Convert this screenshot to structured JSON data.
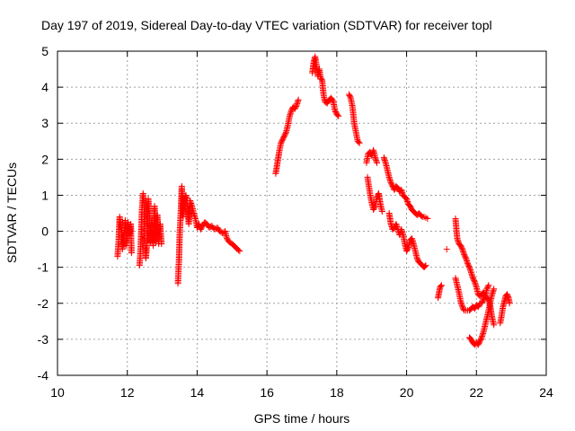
{
  "chart_data": {
    "type": "scatter",
    "title": "Day 197 of 2019, Sidereal Day-to-day VTEC variation (SDTVAR) for receiver topl",
    "xlabel": "GPS time / hours",
    "ylabel": "SDTVAR / TECUs",
    "xlim": [
      10,
      24
    ],
    "ylim": [
      -4,
      5
    ],
    "xticks": [
      10,
      12,
      14,
      16,
      18,
      20,
      22,
      24
    ],
    "yticks": [
      -4,
      -3,
      -2,
      -1,
      0,
      1,
      2,
      3,
      4,
      5
    ],
    "grid": true,
    "marker": "+",
    "color": "#ff0000",
    "segments": [
      [
        [
          11.72,
          -0.7
        ],
        [
          11.75,
          -0.3
        ],
        [
          11.78,
          0.4
        ],
        [
          11.82,
          0.1
        ],
        [
          11.86,
          -0.5
        ],
        [
          11.9,
          -0.2
        ],
        [
          11.94,
          0.3
        ],
        [
          11.98,
          -0.4
        ],
        [
          12.02,
          0.25
        ],
        [
          12.06,
          -0.1
        ],
        [
          12.1,
          0.2
        ],
        [
          12.12,
          -0.6
        ]
      ],
      [
        [
          12.35,
          -0.95
        ],
        [
          12.38,
          -0.5
        ],
        [
          12.42,
          0.6
        ],
        [
          12.45,
          1.05
        ],
        [
          12.48,
          0.8
        ],
        [
          12.5,
          -0.2
        ],
        [
          12.53,
          -0.75
        ],
        [
          12.56,
          -0.4
        ],
        [
          12.6,
          0.9
        ],
        [
          12.63,
          0.5
        ],
        [
          12.66,
          -0.3
        ],
        [
          12.7,
          0.3
        ],
        [
          12.74,
          -0.4
        ],
        [
          12.78,
          0.7
        ],
        [
          12.82,
          -0.3
        ],
        [
          12.86,
          0.45
        ],
        [
          12.9,
          -0.35
        ],
        [
          12.94,
          0.2
        ],
        [
          12.98,
          -0.35
        ]
      ],
      [
        [
          13.45,
          -1.45
        ],
        [
          13.48,
          -0.8
        ],
        [
          13.5,
          -0.1
        ],
        [
          13.53,
          0.5
        ],
        [
          13.56,
          1.25
        ],
        [
          13.6,
          0.4
        ],
        [
          13.64,
          0.9
        ],
        [
          13.68,
          1.0
        ],
        [
          13.72,
          0.7
        ],
        [
          13.76,
          0.2
        ],
        [
          13.8,
          0.85
        ],
        [
          13.85,
          0.7
        ],
        [
          13.9,
          0.5
        ],
        [
          13.95,
          0.35
        ],
        [
          14.0,
          0.1
        ],
        [
          14.05,
          0.2
        ],
        [
          14.1,
          0.05
        ],
        [
          14.15,
          0.15
        ],
        [
          14.22,
          0.25
        ],
        [
          14.28,
          0.2
        ],
        [
          14.35,
          0.1
        ],
        [
          14.42,
          0.15
        ],
        [
          14.5,
          0.05
        ],
        [
          14.58,
          0.1
        ],
        [
          14.65,
          0.0
        ],
        [
          14.72,
          -0.05
        ],
        [
          14.8,
          0.0
        ],
        [
          14.85,
          -0.2
        ],
        [
          14.92,
          -0.3
        ],
        [
          15.0,
          -0.35
        ],
        [
          15.08,
          -0.42
        ],
        [
          15.15,
          -0.5
        ],
        [
          15.22,
          -0.55
        ]
      ],
      [
        [
          16.25,
          1.6
        ],
        [
          16.3,
          1.9
        ],
        [
          16.35,
          2.2
        ],
        [
          16.4,
          2.45
        ],
        [
          16.45,
          2.55
        ],
        [
          16.5,
          2.65
        ],
        [
          16.55,
          2.75
        ],
        [
          16.6,
          2.95
        ],
        [
          16.65,
          3.2
        ],
        [
          16.7,
          3.35
        ],
        [
          16.75,
          3.45
        ],
        [
          16.8,
          3.4
        ],
        [
          16.85,
          3.5
        ],
        [
          16.9,
          3.65
        ]
      ],
      [
        [
          17.3,
          4.4
        ],
        [
          17.34,
          4.7
        ],
        [
          17.38,
          4.85
        ],
        [
          17.42,
          4.6
        ],
        [
          17.46,
          4.3
        ],
        [
          17.5,
          4.5
        ],
        [
          17.54,
          4.25
        ],
        [
          17.58,
          4.2
        ],
        [
          17.62,
          3.8
        ],
        [
          17.66,
          3.6
        ],
        [
          17.72,
          3.55
        ],
        [
          17.78,
          3.65
        ],
        [
          17.84,
          3.7
        ],
        [
          17.9,
          3.6
        ],
        [
          17.95,
          3.35
        ],
        [
          18.0,
          3.25
        ],
        [
          18.05,
          3.2
        ]
      ],
      [
        [
          18.35,
          3.8
        ],
        [
          18.4,
          3.7
        ],
        [
          18.45,
          3.45
        ],
        [
          18.5,
          3.0
        ],
        [
          18.55,
          2.75
        ],
        [
          18.6,
          2.5
        ],
        [
          18.65,
          2.45
        ]
      ],
      [
        [
          18.85,
          1.9
        ],
        [
          18.9,
          2.15
        ],
        [
          18.95,
          2.2
        ],
        [
          19.0,
          2.1
        ],
        [
          19.05,
          2.25
        ],
        [
          19.1,
          2.05
        ],
        [
          19.15,
          1.9
        ]
      ],
      [
        [
          18.88,
          1.5
        ],
        [
          18.92,
          1.25
        ],
        [
          18.96,
          1.0
        ],
        [
          19.0,
          0.8
        ],
        [
          19.05,
          0.6
        ],
        [
          19.1,
          0.7
        ],
        [
          19.15,
          0.95
        ],
        [
          19.2,
          1.05
        ],
        [
          19.25,
          0.75
        ],
        [
          19.3,
          0.55
        ]
      ],
      [
        [
          19.35,
          2.05
        ],
        [
          19.4,
          1.9
        ],
        [
          19.45,
          1.7
        ],
        [
          19.5,
          1.5
        ],
        [
          19.55,
          1.35
        ],
        [
          19.6,
          1.25
        ],
        [
          19.65,
          1.15
        ],
        [
          19.7,
          1.25
        ],
        [
          19.75,
          1.2
        ],
        [
          19.8,
          1.1
        ],
        [
          19.85,
          1.15
        ],
        [
          19.9,
          1.0
        ],
        [
          19.95,
          0.95
        ],
        [
          20.0,
          0.9
        ],
        [
          20.05,
          0.75
        ],
        [
          20.1,
          0.7
        ],
        [
          20.15,
          0.6
        ],
        [
          20.2,
          0.55
        ],
        [
          20.25,
          0.5
        ],
        [
          20.3,
          0.45
        ],
        [
          20.35,
          0.5
        ],
        [
          20.4,
          0.45
        ],
        [
          20.45,
          0.4
        ],
        [
          20.5,
          0.4
        ],
        [
          20.55,
          0.38
        ],
        [
          20.6,
          0.35
        ]
      ],
      [
        [
          19.5,
          0.5
        ],
        [
          19.55,
          0.2
        ],
        [
          19.6,
          0.05
        ],
        [
          19.65,
          0.1
        ],
        [
          19.7,
          0.2
        ],
        [
          19.75,
          0.05
        ],
        [
          19.8,
          -0.1
        ],
        [
          19.85,
          0.05
        ],
        [
          19.9,
          -0.1
        ],
        [
          19.95,
          -0.35
        ],
        [
          20.0,
          -0.55
        ],
        [
          20.05,
          -0.45
        ],
        [
          20.1,
          -0.25
        ],
        [
          20.15,
          -0.2
        ],
        [
          20.2,
          -0.35
        ],
        [
          20.25,
          -0.55
        ],
        [
          20.3,
          -0.75
        ],
        [
          20.35,
          -0.85
        ],
        [
          20.4,
          -0.9
        ],
        [
          20.45,
          -0.95
        ],
        [
          20.5,
          -1.0
        ],
        [
          20.55,
          -0.95
        ]
      ],
      [
        [
          20.9,
          -1.85
        ],
        [
          20.93,
          -1.7
        ],
        [
          20.96,
          -1.55
        ],
        [
          21.0,
          -1.5
        ]
      ],
      [
        [
          21.15,
          -0.5
        ]
      ],
      [
        [
          21.4,
          0.35
        ],
        [
          21.45,
          -0.2
        ],
        [
          21.5,
          -0.35
        ],
        [
          21.55,
          -0.4
        ],
        [
          21.6,
          -0.5
        ],
        [
          21.65,
          -0.65
        ],
        [
          21.7,
          -0.75
        ],
        [
          21.75,
          -0.9
        ],
        [
          21.8,
          -1.0
        ],
        [
          21.85,
          -1.15
        ],
        [
          21.9,
          -1.3
        ],
        [
          21.95,
          -1.4
        ],
        [
          22.0,
          -1.55
        ],
        [
          22.05,
          -1.75
        ],
        [
          22.1,
          -1.8
        ],
        [
          22.15,
          -1.75
        ],
        [
          22.2,
          -1.7
        ],
        [
          22.25,
          -1.8
        ],
        [
          22.3,
          -1.85
        ],
        [
          22.35,
          -1.9
        ],
        [
          22.4,
          -2.1
        ],
        [
          22.45,
          -2.4
        ],
        [
          22.5,
          -2.6
        ]
      ],
      [
        [
          21.4,
          -1.3
        ],
        [
          21.45,
          -1.5
        ],
        [
          21.5,
          -1.7
        ],
        [
          21.55,
          -1.95
        ],
        [
          21.6,
          -2.1
        ],
        [
          21.65,
          -2.2
        ],
        [
          21.7,
          -2.2
        ],
        [
          21.75,
          -2.2
        ],
        [
          21.8,
          -2.2
        ],
        [
          21.85,
          -2.15
        ],
        [
          21.9,
          -2.1
        ],
        [
          21.95,
          -2.15
        ],
        [
          22.0,
          -2.05
        ],
        [
          22.05,
          -2.1
        ],
        [
          22.1,
          -2.0
        ],
        [
          22.15,
          -2.0
        ],
        [
          22.2,
          -1.9
        ],
        [
          22.25,
          -1.8
        ],
        [
          22.3,
          -1.6
        ],
        [
          22.35,
          -1.5
        ]
      ],
      [
        [
          21.8,
          -2.95
        ],
        [
          21.85,
          -3.0
        ],
        [
          21.9,
          -3.1
        ],
        [
          21.95,
          -3.15
        ],
        [
          22.0,
          -3.1
        ],
        [
          22.05,
          -3.15
        ],
        [
          22.1,
          -3.05
        ],
        [
          22.15,
          -2.95
        ],
        [
          22.2,
          -2.8
        ],
        [
          22.25,
          -2.6
        ],
        [
          22.3,
          -2.4
        ],
        [
          22.35,
          -2.2
        ],
        [
          22.4,
          -1.95
        ],
        [
          22.45,
          -1.75
        ],
        [
          22.5,
          -1.6
        ]
      ],
      [
        [
          22.68,
          -2.55
        ],
        [
          22.72,
          -2.35
        ],
        [
          22.76,
          -2.1
        ],
        [
          22.8,
          -1.95
        ],
        [
          22.84,
          -1.8
        ],
        [
          22.88,
          -1.75
        ],
        [
          22.92,
          -1.85
        ],
        [
          22.95,
          -2.0
        ]
      ]
    ]
  }
}
